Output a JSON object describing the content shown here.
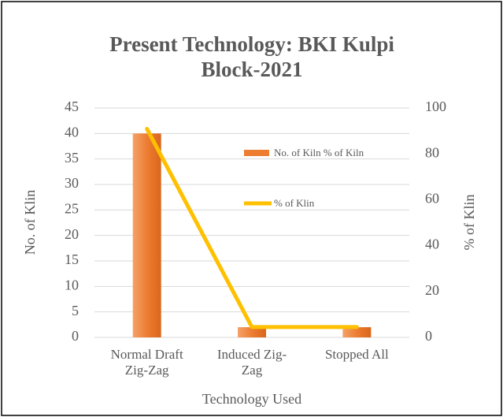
{
  "chart_data": {
    "type": "bar_line",
    "title": "Present Technology: BKI Kulpi Block-2021",
    "categories": [
      "Normal Draft Zig-Zag",
      "Induced Zig-Zag",
      "Stopped All"
    ],
    "series": [
      {
        "name": "No. of Kiln % of Kiln",
        "type": "bar",
        "color": "#ed7d31",
        "values": [
          40,
          2,
          2
        ]
      },
      {
        "name": "% of Klin",
        "type": "line",
        "axis": "y2",
        "color": "#ffc000",
        "values": [
          90.9,
          4.5,
          4.5
        ]
      }
    ],
    "xlabel": "Technology Used",
    "ylabel": "No. of Klin",
    "y2label": "% of Klin",
    "ylim": [
      0,
      45
    ],
    "yticks": [
      0,
      5,
      10,
      15,
      20,
      25,
      30,
      35,
      40,
      45
    ],
    "y2lim": [
      0,
      100
    ],
    "y2ticks": [
      0,
      20,
      40,
      60,
      80,
      100
    ],
    "grid": true,
    "legend": "right"
  }
}
